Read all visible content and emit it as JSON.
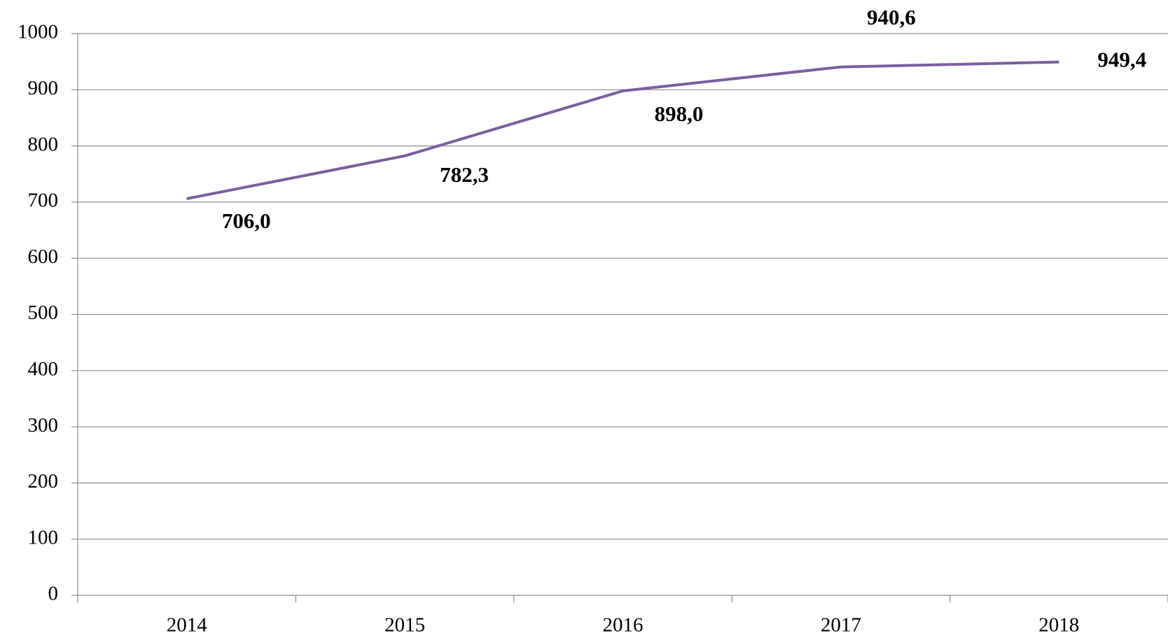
{
  "chart_data": {
    "type": "line",
    "categories": [
      "2014",
      "2015",
      "2016",
      "2017",
      "2018"
    ],
    "series": [
      {
        "color": "#7b5f9e",
        "values": [
          706.0,
          782.3,
          898.0,
          940.6,
          949.4
        ],
        "value_labels": [
          "706,0",
          "782,3",
          "898,0",
          "940,6",
          "949,4"
        ]
      }
    ],
    "ylim": [
      0,
      1000
    ],
    "yticks": [
      0,
      100,
      200,
      300,
      400,
      500,
      600,
      700,
      800,
      900,
      1000
    ],
    "grid": true
  }
}
